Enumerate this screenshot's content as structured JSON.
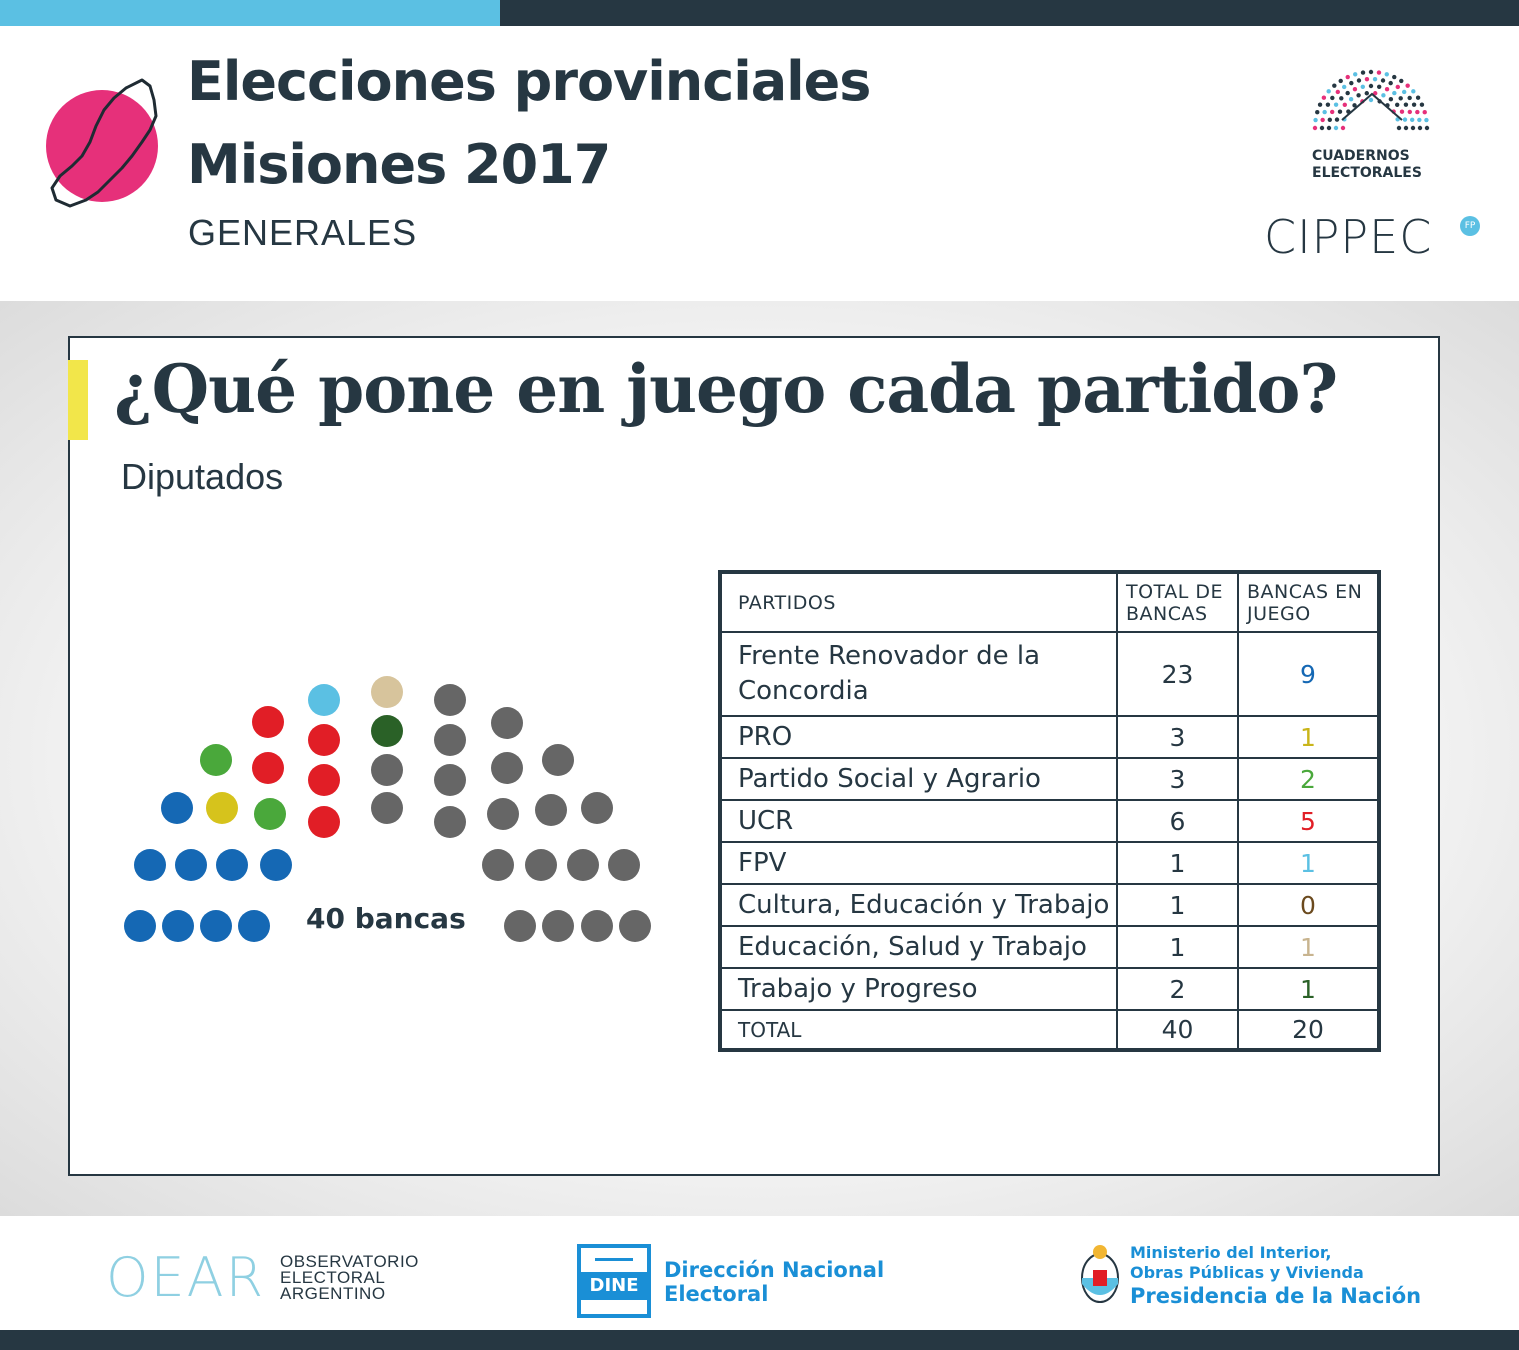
{
  "header": {
    "title_line1": "Elecciones provinciales",
    "title_line2": "Misiones 2017",
    "subtitle": "GENERALES",
    "logo_ce_line1": "CUADERNOS",
    "logo_ce_line2": "ELECTORALES",
    "logo_cippec": "CIPPEC"
  },
  "card": {
    "title": "¿Qué pone en juego cada partido?",
    "subtitle": "Diputados",
    "seats_label": "40 bancas"
  },
  "colors": {
    "dark": "#263742",
    "accent_blue": "#5bc0e3",
    "accent_pink": "#e6307a",
    "accent_yellow": "#f2e64a",
    "frc": "#1568b4",
    "pro": "#d6c31c",
    "psa": "#4aa83b",
    "ucr": "#e11e26",
    "fpv": "#5bc0e3",
    "cet": "#6b4a1e",
    "est": "#d7c49c",
    "typ": "#2a6127",
    "gray": "#666666"
  },
  "table": {
    "headers": [
      "PARTIDOS",
      "TOTAL DE BANCAS",
      "BANCAS EN JUEGO"
    ],
    "rows": [
      {
        "party": "Frente Renovador de la Concordia",
        "total": "23",
        "en_juego": "9",
        "color": "#1568b4"
      },
      {
        "party": "PRO",
        "total": "3",
        "en_juego": "1",
        "color": "#c9b51a"
      },
      {
        "party": "Partido Social y Agrario",
        "total": "3",
        "en_juego": "2",
        "color": "#4aa83b"
      },
      {
        "party": "UCR",
        "total": "6",
        "en_juego": "5",
        "color": "#e11e26"
      },
      {
        "party": "FPV",
        "total": "1",
        "en_juego": "1",
        "color": "#5bc0e3"
      },
      {
        "party": "Cultura, Educación y Trabajo",
        "total": "1",
        "en_juego": "0",
        "color": "#6b4a1e"
      },
      {
        "party": "Educación, Salud y Trabajo",
        "total": "1",
        "en_juego": "1",
        "color": "#c8b48f"
      },
      {
        "party": "Trabajo y Progreso",
        "total": "2",
        "en_juego": "1",
        "color": "#2a6127"
      }
    ],
    "total_label": "TOTAL",
    "total_bancas": "40",
    "total_en_juego": "20"
  },
  "hemicycle": {
    "total_seats": 40,
    "in_play": [
      {
        "party": "Frente Renovador de la Concordia",
        "seats": 9,
        "color": "#1568b4"
      },
      {
        "party": "PRO",
        "seats": 1,
        "color": "#d6c31c"
      },
      {
        "party": "Partido Social y Agrario",
        "seats": 2,
        "color": "#4aa83b"
      },
      {
        "party": "UCR",
        "seats": 5,
        "color": "#e11e26"
      },
      {
        "party": "FPV",
        "seats": 1,
        "color": "#5bc0e3"
      },
      {
        "party": "Educación, Salud y Trabajo",
        "seats": 1,
        "color": "#d7c49c"
      },
      {
        "party": "Trabajo y Progreso",
        "seats": 1,
        "color": "#2a6127"
      }
    ],
    "not_in_play": {
      "seats": 20,
      "color": "#666666"
    }
  },
  "footer": {
    "oear_mark": "OEAR",
    "oear_line1": "OBSERVATORIO",
    "oear_line2": "ELECTORAL",
    "oear_line3": "ARGENTINO",
    "dine_mark": "DINE",
    "dine_line1": "Dirección Nacional",
    "dine_line2": "Electoral",
    "min_line1": "Ministerio del Interior,",
    "min_line2": "Obras Públicas y Vivienda",
    "min_line3": "Presidencia de la Nación"
  }
}
